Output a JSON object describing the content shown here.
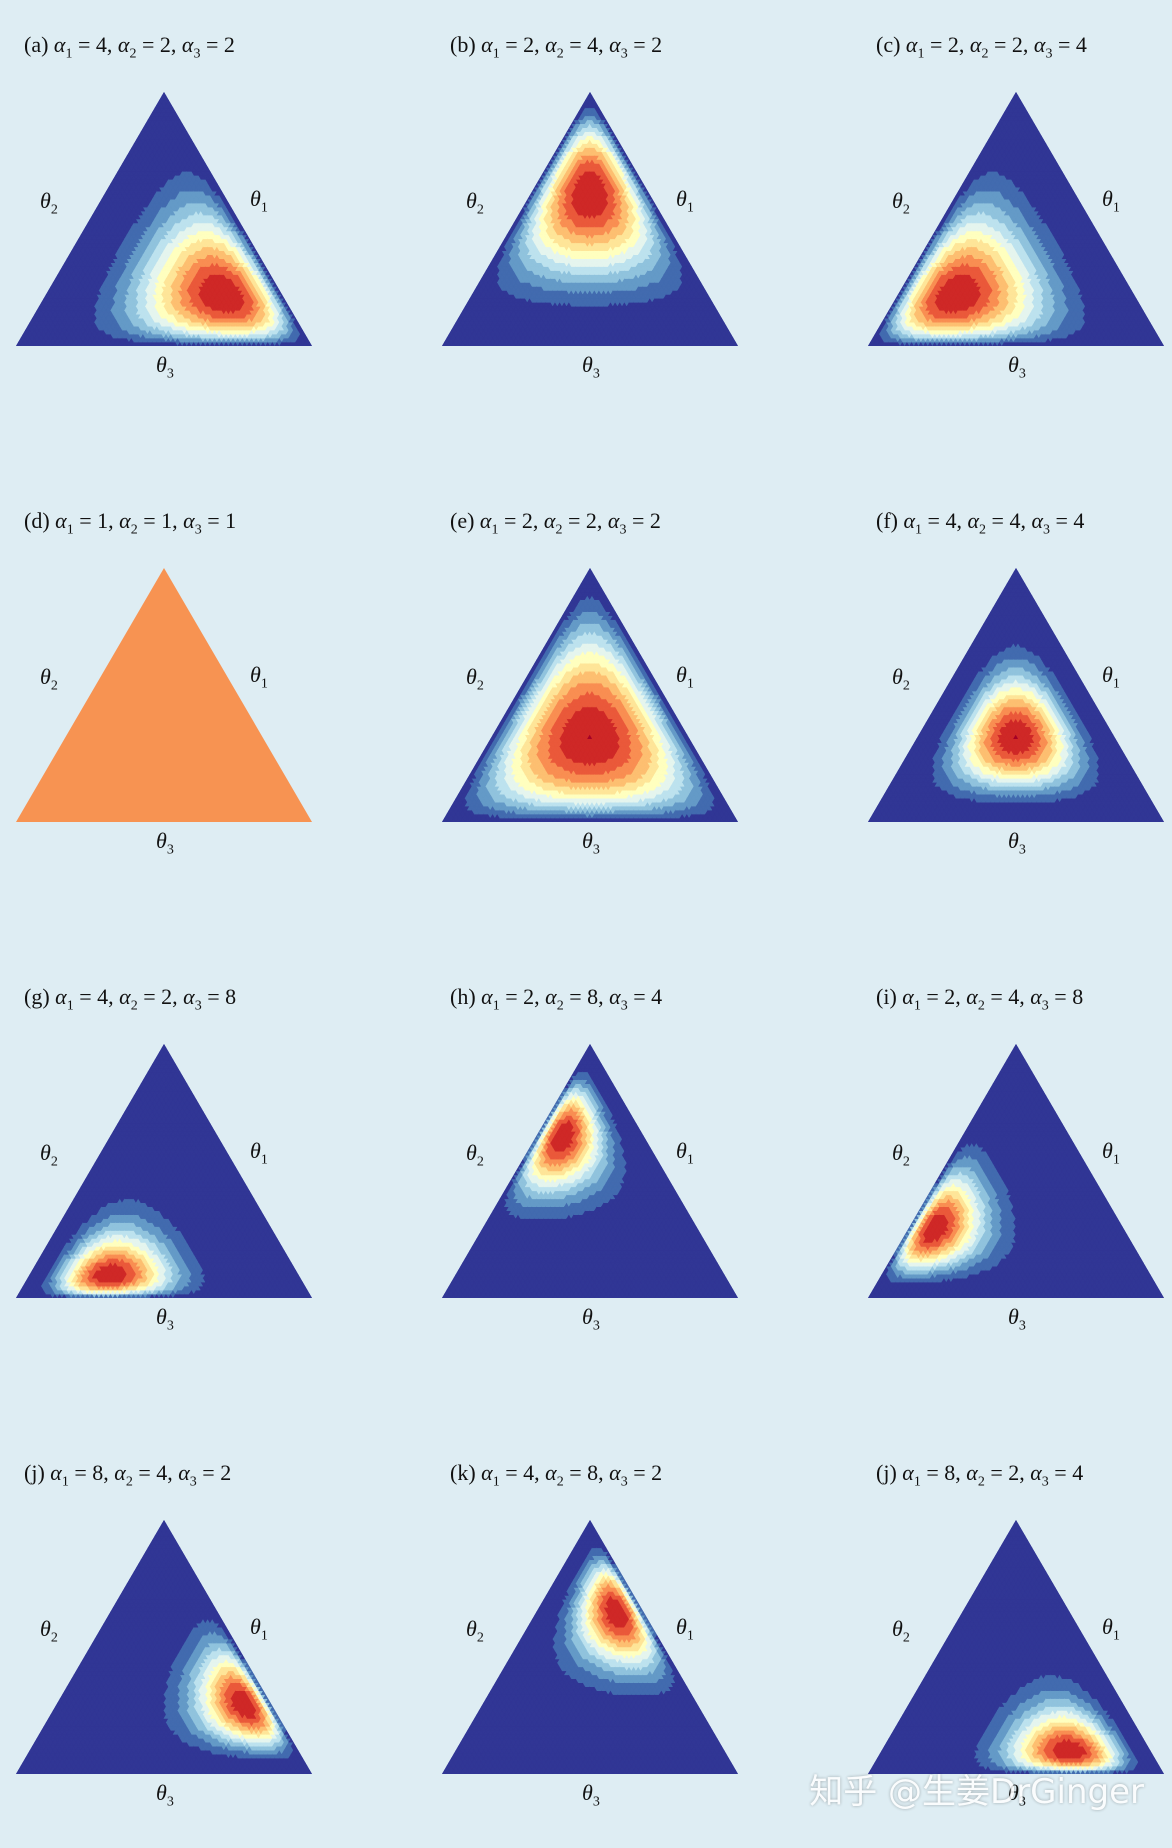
{
  "chart_data": [
    {
      "type": "heatmap",
      "label": "(a)",
      "alpha": [
        4,
        2,
        2
      ],
      "uniform_color": null
    },
    {
      "type": "heatmap",
      "label": "(b)",
      "alpha": [
        2,
        4,
        2
      ],
      "uniform_color": null
    },
    {
      "type": "heatmap",
      "label": "(c)",
      "alpha": [
        2,
        2,
        4
      ],
      "uniform_color": null
    },
    {
      "type": "heatmap",
      "label": "(d)",
      "alpha": [
        1,
        1,
        1
      ],
      "uniform_color": "#f79352"
    },
    {
      "type": "heatmap",
      "label": "(e)",
      "alpha": [
        2,
        2,
        2
      ],
      "uniform_color": null
    },
    {
      "type": "heatmap",
      "label": "(f)",
      "alpha": [
        4,
        4,
        4
      ],
      "uniform_color": null
    },
    {
      "type": "heatmap",
      "label": "(g)",
      "alpha": [
        4,
        2,
        8
      ],
      "uniform_color": null
    },
    {
      "type": "heatmap",
      "label": "(h)",
      "alpha": [
        2,
        8,
        4
      ],
      "uniform_color": null
    },
    {
      "type": "heatmap",
      "label": "(i)",
      "alpha": [
        2,
        4,
        8
      ],
      "uniform_color": null
    },
    {
      "type": "heatmap",
      "label": "(j)",
      "alpha": [
        8,
        4,
        2
      ],
      "uniform_color": null
    },
    {
      "type": "heatmap",
      "label": "(k)",
      "alpha": [
        4,
        8,
        2
      ],
      "uniform_color": null
    },
    {
      "type": "heatmap",
      "label": "(j)",
      "alpha": [
        8,
        2,
        4
      ],
      "uniform_color": null
    }
  ],
  "axis_labels": {
    "theta1": "θ",
    "theta2": "θ",
    "theta3": "θ"
  },
  "axis_subscripts": {
    "theta1": "1",
    "theta2": "2",
    "theta3": "3"
  },
  "title_symbol": "α",
  "colormap": [
    "#313695",
    "#4575b4",
    "#74add1",
    "#abd9e9",
    "#e0f3f8",
    "#ffffbf",
    "#fee090",
    "#fdae61",
    "#f46d43",
    "#d73027",
    "#a50026"
  ],
  "background_color": "#deedf3",
  "watermark": "知乎 @生姜DrGinger"
}
